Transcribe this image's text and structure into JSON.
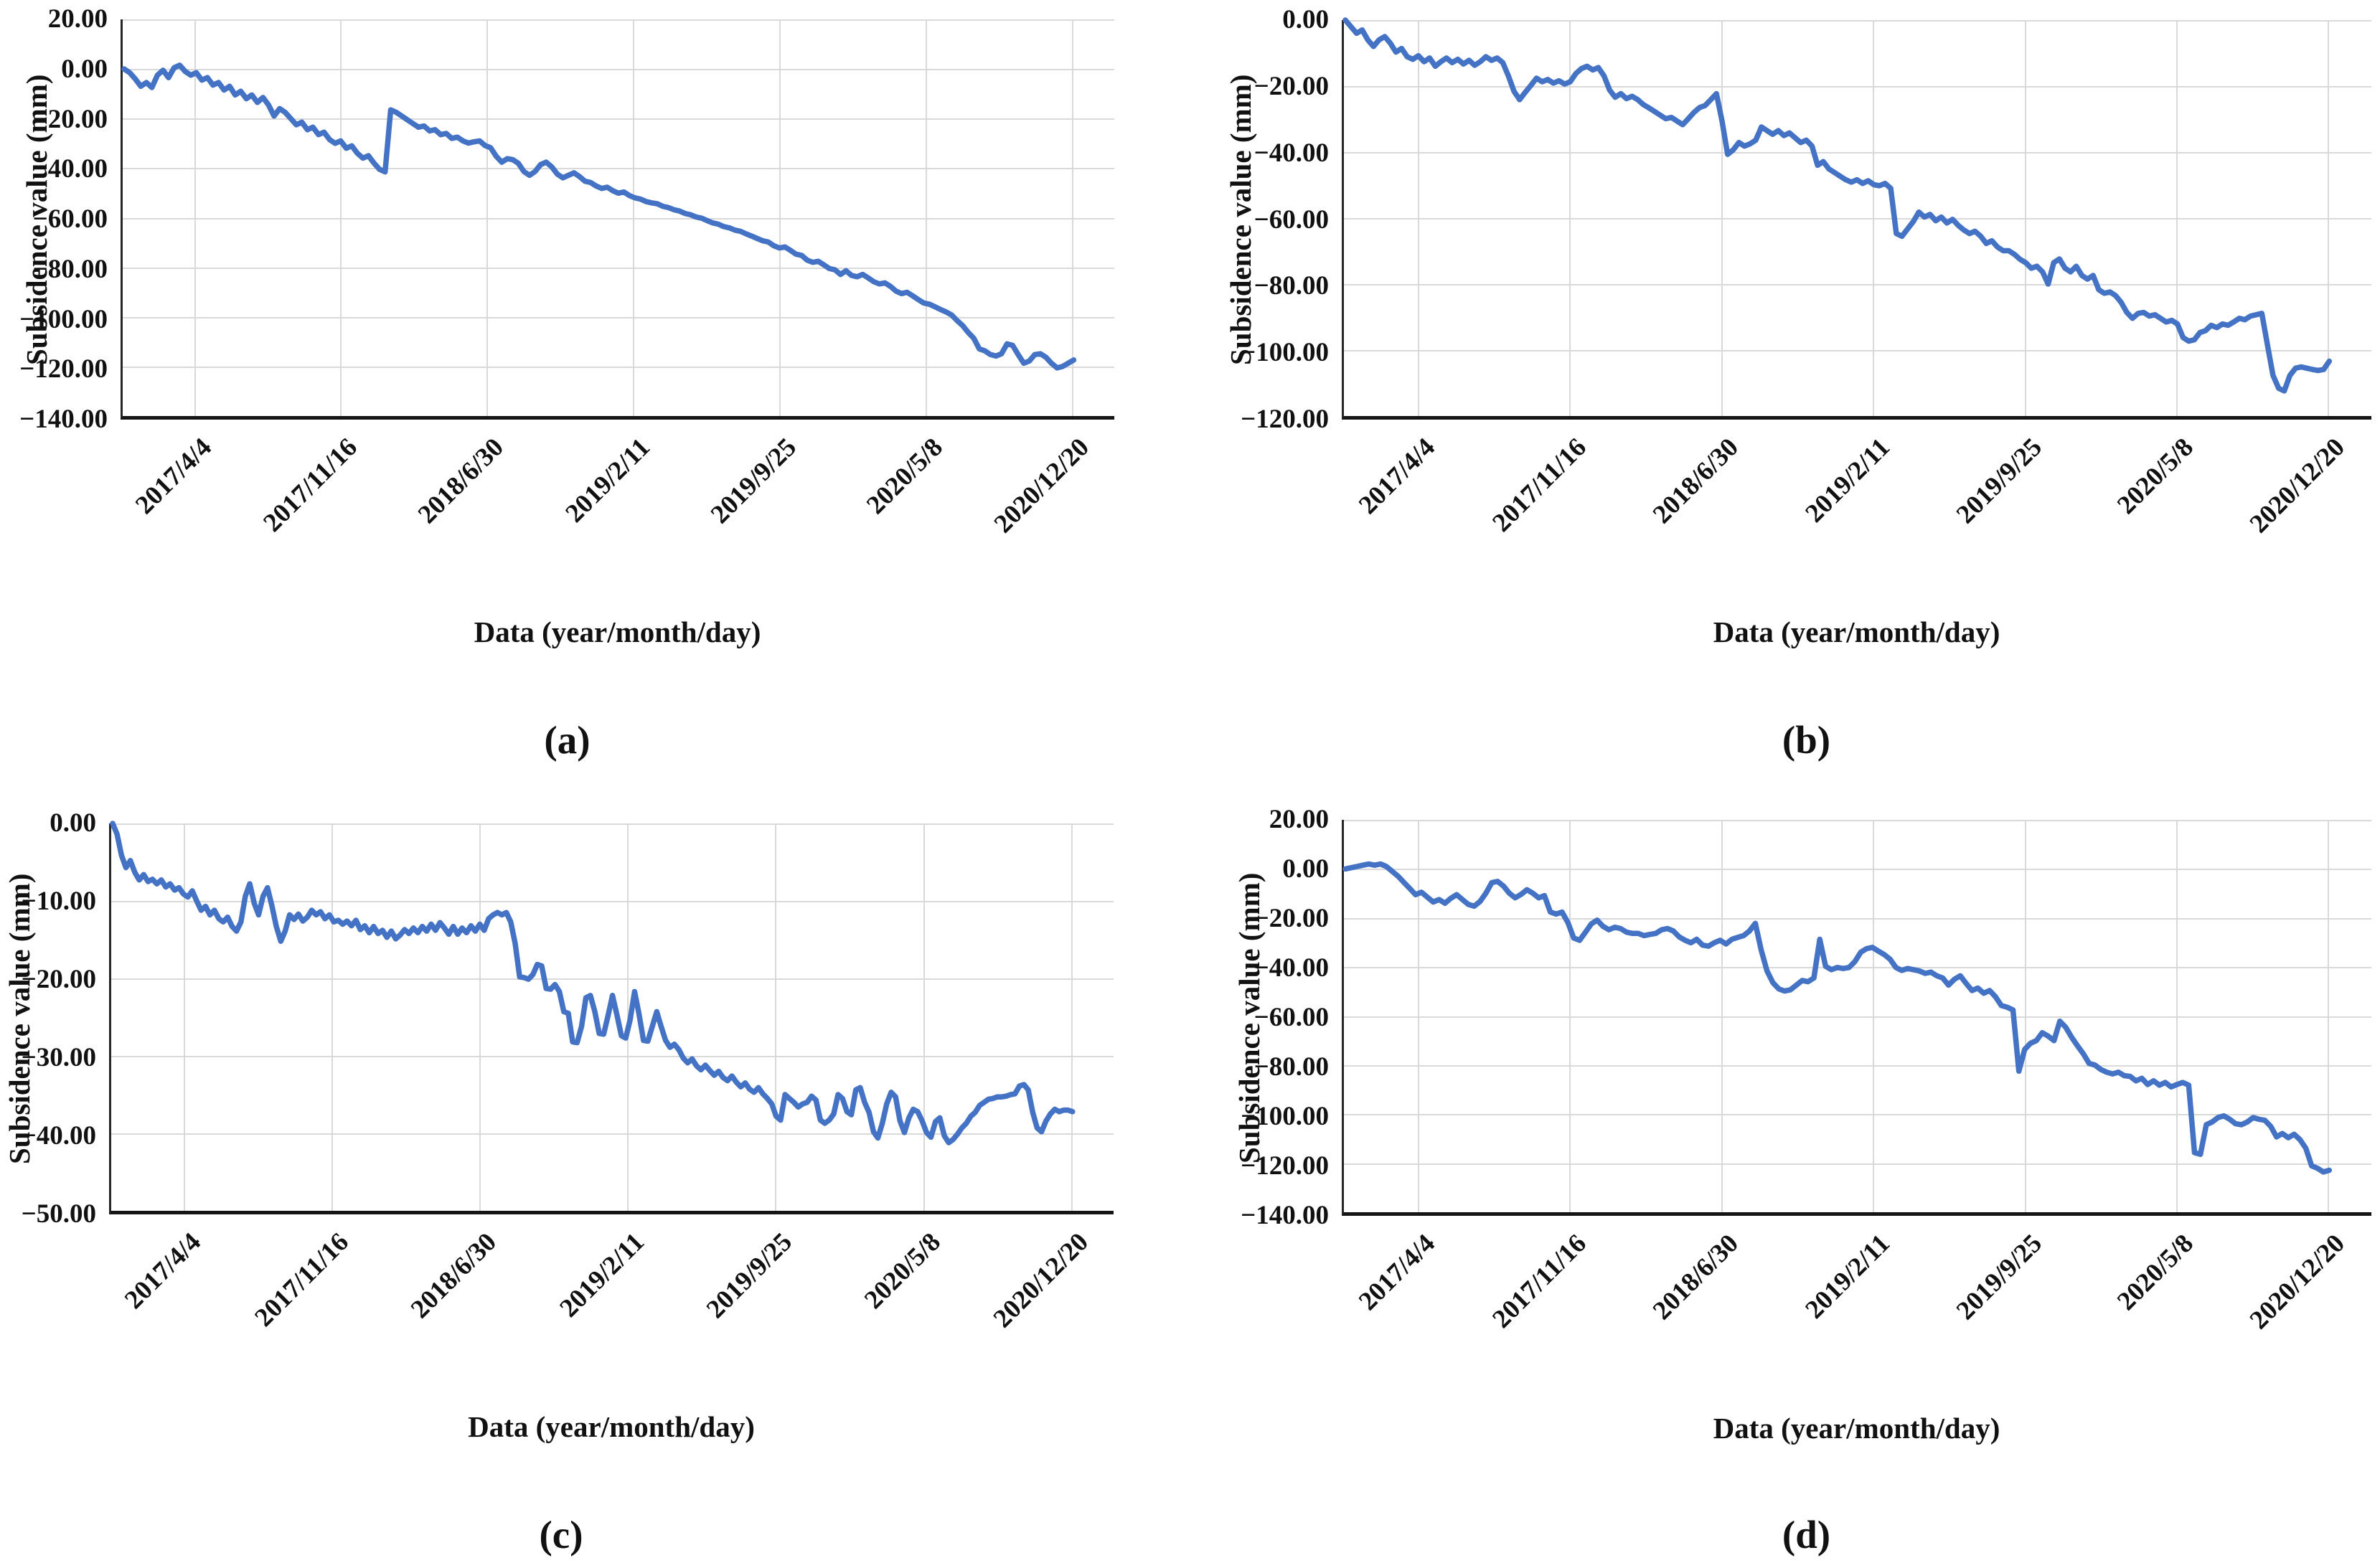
{
  "chart_data": [
    {
      "type": "line",
      "panel_label": "(a)",
      "xlabel": "Data (year/month/day)",
      "ylabel": "Subsidence value (mm)",
      "x_tick_labels": [
        "2017/4/4",
        "2017/11/16",
        "2018/6/30",
        "2019/2/11",
        "2019/9/25",
        "2020/5/8",
        "2020/12/20"
      ],
      "y_tick_labels": [
        "20.00",
        "0.00",
        "−20.00",
        "−40.00",
        "−60.00",
        "−80.00",
        "−100.00",
        "−120.00",
        "−140.00"
      ],
      "ylim": [
        -140,
        20
      ],
      "line_color": "#4472C4",
      "grid": true,
      "legend": "none",
      "series": [
        {
          "values": [
            0,
            -1.5,
            -4,
            -7,
            -5.5,
            -7.5,
            -2.5,
            -0.5,
            -3.5,
            0.5,
            1.5,
            -1,
            -2.5,
            -1.5,
            -4.5,
            -3.5,
            -6.5,
            -5.5,
            -8.5,
            -7,
            -10.5,
            -9,
            -12,
            -10.5,
            -13.5,
            -11.5,
            -14.5,
            -19,
            -16,
            -17.5,
            -20,
            -22.5,
            -21.5,
            -24.5,
            -23.5,
            -26.5,
            -25.5,
            -28.5,
            -30,
            -29,
            -32,
            -31,
            -34,
            -36,
            -35,
            -38,
            -40.5,
            -41.5,
            -16.5,
            -17.5,
            -19,
            -20.5,
            -22,
            -23.5,
            -23,
            -25,
            -24.5,
            -26.5,
            -26,
            -28,
            -27.5,
            -29,
            -29.9,
            -29.4,
            -29,
            -30.9,
            -31.8,
            -35.2,
            -37.6,
            -36.2,
            -36.6,
            -38.1,
            -41.4,
            -42.9,
            -41.4,
            -38.6,
            -37.6,
            -39.5,
            -42.4,
            -43.9,
            -42.9,
            -41.9,
            -43.4,
            -45.3,
            -45.8,
            -47.2,
            -48.2,
            -47.7,
            -49.1,
            -50.1,
            -49.6,
            -51.1,
            -52,
            -52.5,
            -53.5,
            -54,
            -54.4,
            -55.4,
            -55.9,
            -56.8,
            -57.3,
            -58.3,
            -58.8,
            -59.7,
            -60.2,
            -61.2,
            -62.1,
            -62.6,
            -63.6,
            -64.1,
            -65,
            -65.5,
            -66.5,
            -67.4,
            -68.4,
            -69.3,
            -69.8,
            -71.3,
            -72.2,
            -71.8,
            -73.2,
            -74.7,
            -75.2,
            -77.1,
            -78,
            -77.6,
            -79,
            -80.5,
            -81,
            -82.9,
            -81.4,
            -83.3,
            -83.8,
            -82.9,
            -84.3,
            -85.8,
            -86.7,
            -86.3,
            -87.7,
            -89.6,
            -90.6,
            -90.1,
            -91.5,
            -93,
            -94.4,
            -94.9,
            -95.9,
            -97,
            -98,
            -99.2,
            -101.5,
            -103.5,
            -106.3,
            -108.6,
            -112.9,
            -113.7,
            -115.2,
            -115.8,
            -114.9,
            -110.9,
            -111.5,
            -115.2,
            -118.7,
            -117.8,
            -115.2,
            -114.9,
            -116.3,
            -118.7,
            -120.6,
            -120,
            -118.7,
            -117.4
          ]
        }
      ]
    },
    {
      "type": "line",
      "panel_label": "(b)",
      "xlabel": "Data (year/month/day)",
      "ylabel": "Subsidence value (mm)",
      "x_tick_labels": [
        "2017/4/4",
        "2017/11/16",
        "2018/6/30",
        "2019/2/11",
        "2019/9/25",
        "2020/5/8",
        "2020/12/20"
      ],
      "y_tick_labels": [
        "0.00",
        "−20.00",
        "−40.00",
        "−60.00",
        "−80.00",
        "−100.00",
        "−120.00"
      ],
      "ylim": [
        -120,
        0
      ],
      "line_color": "#4472C4",
      "grid": true,
      "legend": "none",
      "series": [
        {
          "values": [
            0,
            -2,
            -4,
            -3,
            -6,
            -8,
            -6,
            -5,
            -7,
            -9.7,
            -8.6,
            -11.1,
            -11.9,
            -10.8,
            -12.6,
            -11.5,
            -14,
            -12.6,
            -11.5,
            -12.9,
            -11.9,
            -13.3,
            -12.2,
            -13.7,
            -12.6,
            -11.1,
            -12.2,
            -11.5,
            -12.9,
            -16.9,
            -21.6,
            -24.1,
            -21.9,
            -19.8,
            -17.6,
            -18.7,
            -18,
            -19.1,
            -18.4,
            -19.4,
            -18.7,
            -16.2,
            -14.7,
            -14,
            -15.1,
            -14.4,
            -16.9,
            -21.2,
            -23.4,
            -22.3,
            -23.8,
            -23.1,
            -24.1,
            -25.6,
            -26.6,
            -27.7,
            -28.8,
            -29.9,
            -29.5,
            -30.6,
            -31.7,
            -29.9,
            -28,
            -26.5,
            -25.9,
            -24.1,
            -22.3,
            -30.6,
            -40.7,
            -39.3,
            -37.1,
            -38.2,
            -37.5,
            -36.4,
            -32.4,
            -33.5,
            -34.6,
            -33.5,
            -35,
            -34.2,
            -35.7,
            -37.1,
            -36.4,
            -38.2,
            -44,
            -42.9,
            -45.1,
            -46.2,
            -47.3,
            -48.4,
            -49.1,
            -48.4,
            -49.5,
            -48.7,
            -49.9,
            -50.2,
            -49.5,
            -51,
            -64.7,
            -65.5,
            -63.3,
            -61.1,
            -58.2,
            -59.7,
            -58.9,
            -60.8,
            -59.7,
            -61.5,
            -60.4,
            -62.2,
            -63.6,
            -64.7,
            -64,
            -65.5,
            -67.7,
            -66.9,
            -68.8,
            -69.9,
            -69.9,
            -71,
            -72.5,
            -73.5,
            -75.2,
            -74.6,
            -76.3,
            -80,
            -73.5,
            -72.4,
            -75.2,
            -76.3,
            -74.6,
            -77.4,
            -78.5,
            -77.4,
            -81.7,
            -82.8,
            -82.4,
            -83.5,
            -85.6,
            -88.6,
            -90.4,
            -88.9,
            -88.6,
            -89.7,
            -89.3,
            -90.4,
            -91.5,
            -91,
            -92.1,
            -96.2,
            -97.3,
            -96.9,
            -94.7,
            -94.1,
            -92.5,
            -93.2,
            -92.1,
            -92.5,
            -91.5,
            -90.4,
            -90.8,
            -89.7,
            -89.3,
            -88.9,
            -98.4,
            -107.7,
            -111.6,
            -112.4,
            -107.7,
            -105.5,
            -105.1,
            -105.5,
            -105.9,
            -106.2,
            -105.9,
            -103.4
          ]
        }
      ]
    },
    {
      "type": "line",
      "panel_label": "(c)",
      "xlabel": "Data (year/month/day)",
      "ylabel": "Subsidence value (mm)",
      "x_tick_labels": [
        "2017/4/4",
        "2017/11/16",
        "2018/6/30",
        "2019/2/11",
        "2019/9/25",
        "2020/5/8",
        "2020/12/20"
      ],
      "y_tick_labels": [
        "0.00",
        "−10.00",
        "−20.00",
        "−30.00",
        "−40.00",
        "−50.00"
      ],
      "ylim": [
        -50,
        0
      ],
      "line_color": "#4472C4",
      "grid": true,
      "legend": "none",
      "series": [
        {
          "values": [
            0,
            -1.4,
            -4.1,
            -5.7,
            -4.8,
            -6.3,
            -7.3,
            -6.6,
            -7.5,
            -7.2,
            -7.8,
            -7.3,
            -8.2,
            -7.8,
            -8.6,
            -8.3,
            -9.1,
            -9.5,
            -8.7,
            -10,
            -11.2,
            -10.7,
            -11.8,
            -11.2,
            -12.3,
            -12.7,
            -12.1,
            -13.3,
            -13.9,
            -12.7,
            -9.4,
            -7.8,
            -10.3,
            -11.8,
            -9.4,
            -8.3,
            -10.6,
            -13.3,
            -15.2,
            -13.9,
            -11.8,
            -12.4,
            -11.7,
            -12.6,
            -12.1,
            -11.2,
            -11.8,
            -11.4,
            -12.3,
            -11.8,
            -12.7,
            -12.5,
            -13,
            -12.6,
            -13.2,
            -12.5,
            -13.7,
            -13.2,
            -14.1,
            -13.3,
            -14.2,
            -13.8,
            -14.7,
            -13.9,
            -14.9,
            -14.4,
            -13.7,
            -14.2,
            -13.5,
            -14.1,
            -13.3,
            -13.9,
            -13,
            -13.8,
            -12.8,
            -13.5,
            -14.3,
            -13.3,
            -14.3,
            -13.5,
            -14.1,
            -13.2,
            -13.9,
            -13,
            -13.8,
            -12.3,
            -11.8,
            -11.5,
            -11.8,
            -11.5,
            -12.7,
            -15.5,
            -19.8,
            -19.9,
            -20.1,
            -19.5,
            -18.2,
            -18.4,
            -21.3,
            -21.4,
            -20.8,
            -21.7,
            -24.3,
            -24.5,
            -28.2,
            -28.3,
            -26.2,
            -22.5,
            -22.2,
            -24.3,
            -27.1,
            -27.2,
            -24.8,
            -22.2,
            -24.7,
            -27.4,
            -27.7,
            -25.3,
            -21.7,
            -24.6,
            -28,
            -28.1,
            -26.2,
            -24.3,
            -26.2,
            -28,
            -28.9,
            -28.5,
            -29.2,
            -30.3,
            -30.9,
            -30.4,
            -31.3,
            -31.8,
            -31.2,
            -31.9,
            -32.5,
            -32,
            -32.8,
            -33.2,
            -32.6,
            -33.4,
            -34,
            -33.5,
            -34.3,
            -34.7,
            -34.1,
            -34.9,
            -35.5,
            -36.2,
            -37.8,
            -38.3,
            -35,
            -35.5,
            -36,
            -36.6,
            -36.2,
            -36,
            -35.2,
            -35.7,
            -38.3,
            -38.7,
            -38.3,
            -37.5,
            -35,
            -35.5,
            -37.2,
            -37.6,
            -34.4,
            -34.1,
            -36,
            -37.3,
            -39.8,
            -40.6,
            -38.7,
            -36.2,
            -34.7,
            -35.3,
            -38.4,
            -39.9,
            -38,
            -36.9,
            -37.2,
            -38.4,
            -39.9,
            -40.5,
            -38.5,
            -38,
            -40.3,
            -41.2,
            -40.8,
            -40.1,
            -39.3,
            -38.7,
            -37.8,
            -37.3,
            -36.4,
            -36,
            -35.6,
            -35.5,
            -35.3,
            -35.3,
            -35.2,
            -35,
            -34.9,
            -33.9,
            -33.7,
            -34.4,
            -37.3,
            -39.3,
            -39.8,
            -38.4,
            -37.5,
            -36.9,
            -37.2,
            -37,
            -37,
            -37.2
          ]
        }
      ]
    },
    {
      "type": "line",
      "panel_label": "(d)",
      "xlabel": "Data (year/month/day)",
      "ylabel": "Subsidence value (mm)",
      "x_tick_labels": [
        "2017/4/4",
        "2017/11/16",
        "2018/6/30",
        "2019/2/11",
        "2019/9/25",
        "2020/5/8",
        "2020/12/20"
      ],
      "y_tick_labels": [
        "20.00",
        "0.00",
        "−20.00",
        "−40.00",
        "−60.00",
        "−80.00",
        "−100.00",
        "−120.00",
        "−140.00"
      ],
      "ylim": [
        -140,
        20
      ],
      "line_color": "#4472C4",
      "grid": true,
      "legend": "none",
      "series": [
        {
          "values": [
            0,
            0.5,
            1,
            1.5,
            2,
            1.5,
            2,
            1,
            -1,
            -3,
            -5.5,
            -8,
            -10.5,
            -9.5,
            -11.5,
            -13.5,
            -12.5,
            -14,
            -12,
            -10.5,
            -12.5,
            -14.5,
            -15.2,
            -13.3,
            -9.9,
            -5.6,
            -5.1,
            -7,
            -9.9,
            -11.8,
            -10.4,
            -8.5,
            -9.9,
            -11.8,
            -10.9,
            -17.6,
            -18.4,
            -17.6,
            -21.9,
            -28.2,
            -29.1,
            -25.8,
            -22.4,
            -20.9,
            -23.4,
            -24.8,
            -23.8,
            -24.3,
            -25.8,
            -26.3,
            -26.3,
            -27.2,
            -26.7,
            -26.3,
            -24.8,
            -24.3,
            -25.3,
            -27.7,
            -29.1,
            -30.1,
            -28.7,
            -31.1,
            -31.5,
            -30.1,
            -29.1,
            -30.6,
            -28.7,
            -27.9,
            -27.2,
            -25.3,
            -22.2,
            -33,
            -41.6,
            -46.4,
            -48.9,
            -49.8,
            -49.3,
            -47.4,
            -45.5,
            -46,
            -44.5,
            -28.7,
            -39.7,
            -41.1,
            -40.2,
            -40.6,
            -40.2,
            -37.8,
            -34,
            -32.5,
            -32,
            -33.5,
            -34.9,
            -36.8,
            -40.2,
            -41.4,
            -40.6,
            -41.1,
            -41.6,
            -42.6,
            -42.1,
            -43.6,
            -44.5,
            -47.4,
            -45,
            -43.6,
            -46.7,
            -49.6,
            -48.6,
            -50.7,
            -49.6,
            -52.1,
            -55.7,
            -56.4,
            -57.5,
            -82.5,
            -73.6,
            -71.1,
            -70,
            -66.8,
            -68.2,
            -70,
            -62.1,
            -64.6,
            -68.6,
            -72.1,
            -75.4,
            -79.3,
            -80,
            -81.8,
            -82.9,
            -83.6,
            -82.9,
            -84.3,
            -84.6,
            -86.4,
            -85.4,
            -87.9,
            -86.4,
            -88.2,
            -87.1,
            -88.9,
            -87.9,
            -87.1,
            -88.2,
            -115.7,
            -116.4,
            -104.3,
            -103.2,
            -101.4,
            -100.7,
            -102.1,
            -103.9,
            -104.3,
            -103.2,
            -101.4,
            -102.1,
            -102.5,
            -105,
            -109.3,
            -107.9,
            -109.6,
            -108.2,
            -110.4,
            -113.9,
            -121.1,
            -122.1,
            -123.6,
            -122.9
          ]
        }
      ]
    }
  ]
}
